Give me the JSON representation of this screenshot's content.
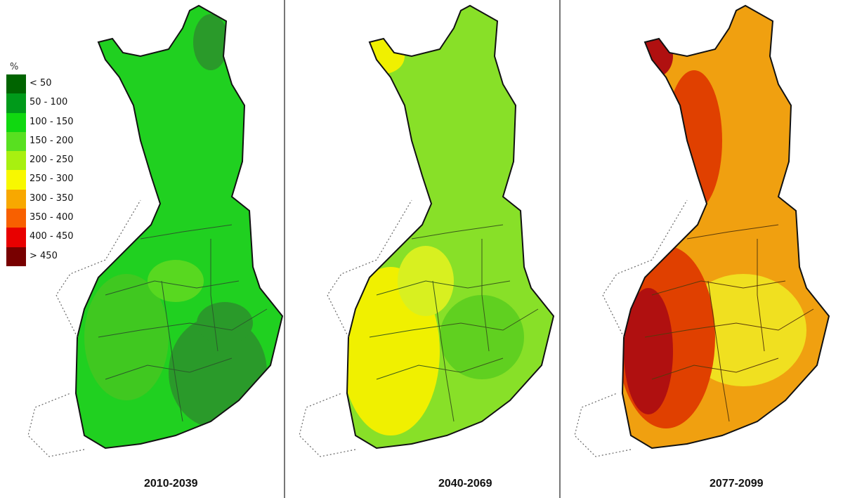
{
  "legend": {
    "unit": "%",
    "classes": [
      {
        "label": "< 50",
        "color": "#006400"
      },
      {
        "label": "50 - 100",
        "color": "#009a1a"
      },
      {
        "label": "100 - 150",
        "color": "#10d810"
      },
      {
        "label": "150 - 200",
        "color": "#58e020"
      },
      {
        "label": "200 - 250",
        "color": "#a8f010"
      },
      {
        "label": "250 - 300",
        "color": "#f8f800"
      },
      {
        "label": "300 - 350",
        "color": "#f8a800"
      },
      {
        "label": "350 - 400",
        "color": "#f86000"
      },
      {
        "label": "400 - 450",
        "color": "#e80000"
      },
      {
        "label": "> 450",
        "color": "#780000"
      }
    ]
  },
  "maps": [
    {
      "period": "2010-2039",
      "base_color": "#20d020",
      "accent_colors": [
        "#40c820",
        "#2a9a2a",
        "#58d820"
      ]
    },
    {
      "period": "2040-2069",
      "base_color": "#88e028",
      "accent_colors": [
        "#f0f000",
        "#d8f020",
        "#60d020"
      ]
    },
    {
      "period": "2077-2099",
      "base_color": "#f0a010",
      "accent_colors": [
        "#f0e020",
        "#e04000",
        "#b01010"
      ]
    }
  ]
}
